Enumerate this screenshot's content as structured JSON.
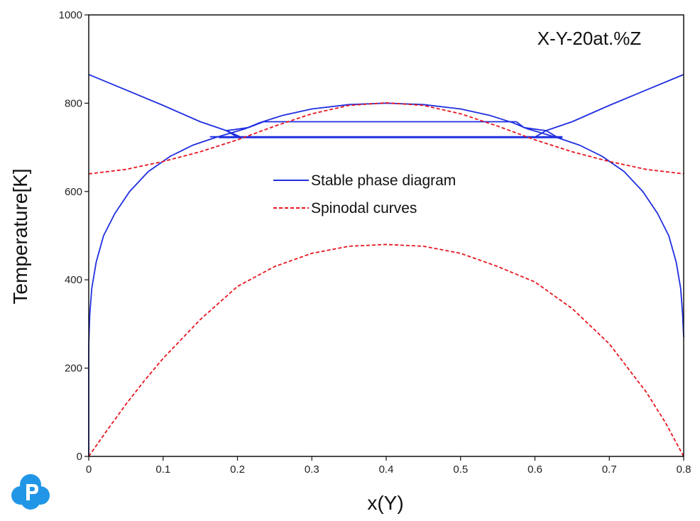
{
  "chart_data": {
    "type": "line",
    "title": "",
    "annotation": "X-Y-20at.%Z",
    "xlabel": "x(Y)",
    "ylabel": "Temperature[K]",
    "xlim": [
      0,
      0.8
    ],
    "ylim": [
      0,
      1000
    ],
    "x_ticks": [
      "0",
      "0.1",
      "0.2",
      "0.3",
      "0.4",
      "0.5",
      "0.6",
      "0.7",
      "0.8"
    ],
    "y_ticks": [
      "0",
      "200",
      "400",
      "600",
      "800",
      "1000"
    ],
    "grid": false,
    "legend_position": "center",
    "legend": [
      {
        "label": "Stable phase diagram",
        "color": "#1f2ee0",
        "style": "solid"
      },
      {
        "label": "Spinodal curves",
        "color": "#e8141e",
        "style": "dashed"
      }
    ],
    "series": [
      {
        "name": "Stable phase diagram",
        "color": "#1f2ee0",
        "style": "solid",
        "segments": [
          [
            [
              0.0,
              0
            ],
            [
              0.0,
              250
            ],
            [
              0.0013,
              320
            ],
            [
              0.004,
              380
            ],
            [
              0.01,
              440
            ],
            [
              0.02,
              500
            ],
            [
              0.035,
              550
            ],
            [
              0.055,
              600
            ],
            [
              0.08,
              645
            ],
            [
              0.11,
              680
            ],
            [
              0.14,
              705
            ],
            [
              0.17,
              722
            ],
            [
              0.19,
              732
            ],
            [
              0.21,
              742
            ],
            [
              0.23,
              756
            ],
            [
              0.26,
              772
            ],
            [
              0.3,
              787
            ],
            [
              0.35,
              797
            ],
            [
              0.4,
              800
            ],
            [
              0.45,
              797
            ],
            [
              0.5,
              787
            ],
            [
              0.54,
              772
            ],
            [
              0.57,
              756
            ],
            [
              0.59,
              742
            ],
            [
              0.61,
              732
            ],
            [
              0.63,
              722
            ],
            [
              0.66,
              705
            ],
            [
              0.69,
              680
            ],
            [
              0.72,
              645
            ],
            [
              0.745,
              600
            ],
            [
              0.765,
              550
            ],
            [
              0.78,
              500
            ],
            [
              0.79,
              440
            ],
            [
              0.796,
              380
            ],
            [
              0.7987,
              320
            ],
            [
              0.8,
              270
            ]
          ],
          [
            [
              0.0,
              865
            ],
            [
              0.05,
              830
            ],
            [
              0.1,
              795
            ],
            [
              0.15,
              758
            ],
            [
              0.185,
              738
            ],
            [
              0.2,
              723
            ]
          ],
          [
            [
              0.8,
              865
            ],
            [
              0.75,
              830
            ],
            [
              0.7,
              795
            ],
            [
              0.65,
              758
            ],
            [
              0.615,
              738
            ],
            [
              0.6,
              723
            ]
          ],
          [
            [
              0.175,
              722
            ],
            [
              0.637,
              722
            ]
          ],
          [
            [
              0.163,
              724
            ],
            [
              0.637,
              724
            ]
          ],
          [
            [
              0.185,
              738
            ],
            [
              0.205,
              723
            ]
          ],
          [
            [
              0.615,
              738
            ],
            [
              0.63,
              723
            ]
          ],
          [
            [
              0.235,
              758
            ],
            [
              0.575,
              758
            ]
          ],
          [
            [
              0.185,
              738
            ],
            [
              0.195,
              740
            ],
            [
              0.215,
              745
            ],
            [
              0.235,
              758
            ]
          ],
          [
            [
              0.615,
              738
            ],
            [
              0.605,
              740
            ],
            [
              0.585,
              745
            ],
            [
              0.575,
              758
            ]
          ]
        ]
      },
      {
        "name": "Spinodal curves",
        "color": "#e8141e",
        "style": "dashed",
        "segments": [
          [
            [
              0.0,
              640
            ],
            [
              0.05,
              650
            ],
            [
              0.1,
              668
            ],
            [
              0.15,
              690
            ],
            [
              0.2,
              717
            ],
            [
              0.25,
              748
            ],
            [
              0.3,
              776
            ],
            [
              0.35,
              795
            ],
            [
              0.4,
              801
            ],
            [
              0.45,
              795
            ],
            [
              0.5,
              776
            ],
            [
              0.55,
              748
            ],
            [
              0.6,
              717
            ],
            [
              0.65,
              690
            ],
            [
              0.7,
              668
            ],
            [
              0.75,
              650
            ],
            [
              0.8,
              640
            ]
          ],
          [
            [
              0.0,
              0
            ],
            [
              0.025,
              60
            ],
            [
              0.05,
              118
            ],
            [
              0.075,
              172
            ],
            [
              0.1,
              222
            ],
            [
              0.15,
              310
            ],
            [
              0.2,
              385
            ],
            [
              0.25,
              430
            ],
            [
              0.3,
              460
            ],
            [
              0.35,
              476
            ],
            [
              0.4,
              480
            ],
            [
              0.45,
              476
            ],
            [
              0.5,
              460
            ],
            [
              0.55,
              430
            ],
            [
              0.6,
              395
            ],
            [
              0.65,
              335
            ],
            [
              0.7,
              255
            ],
            [
              0.75,
              145
            ],
            [
              0.775,
              78
            ],
            [
              0.8,
              0
            ]
          ]
        ]
      }
    ]
  }
}
